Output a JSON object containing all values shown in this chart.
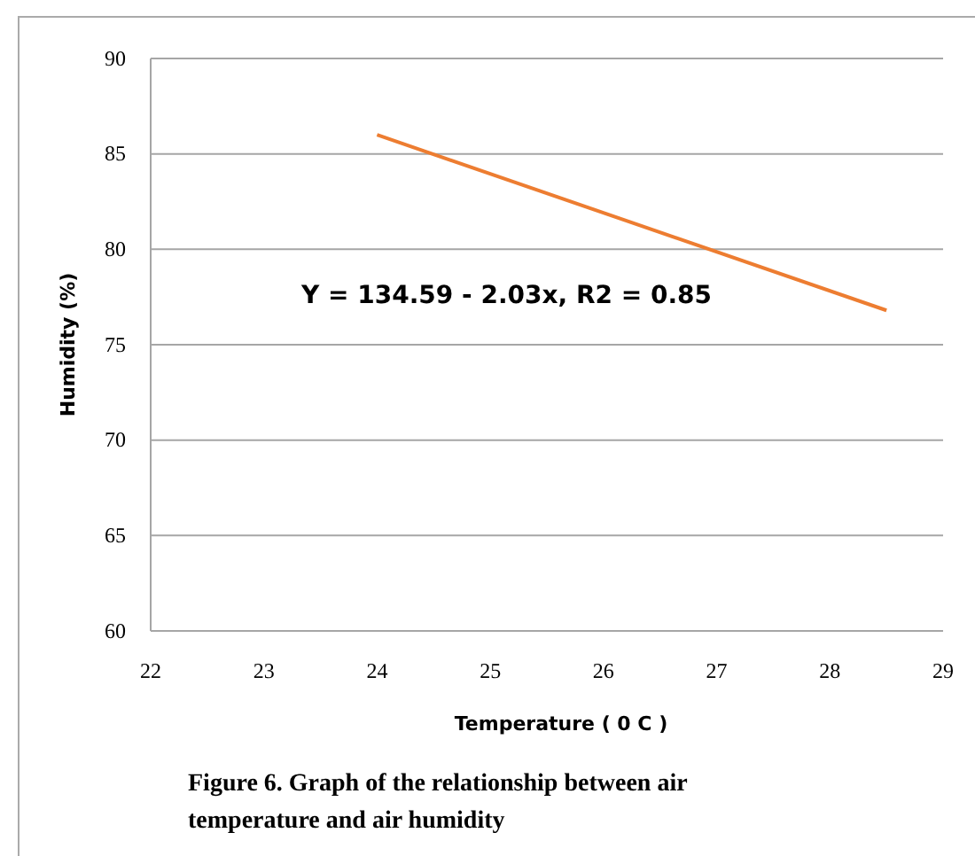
{
  "chart_data": {
    "type": "line",
    "xlabel": "Temperature ( 0 C )",
    "ylabel": "Humidity (%)",
    "x": [
      24,
      28.5
    ],
    "series": [
      {
        "color": "#ed7d31",
        "values": [
          86,
          76.8
        ]
      }
    ],
    "xlim": [
      22,
      29
    ],
    "xticks": [
      22,
      23,
      24,
      25,
      26,
      27,
      28,
      29
    ],
    "ylim": [
      60,
      90
    ],
    "yticks": [
      60,
      65,
      70,
      75,
      80,
      85,
      90
    ],
    "grid": "y",
    "marker": "none",
    "line_style": "solid",
    "annotations": [
      "Y = 134.59 - 2.03x, R2 = 0.85",
      "Figure 6. Graph of the relationship between air temperature and air humidity"
    ]
  }
}
